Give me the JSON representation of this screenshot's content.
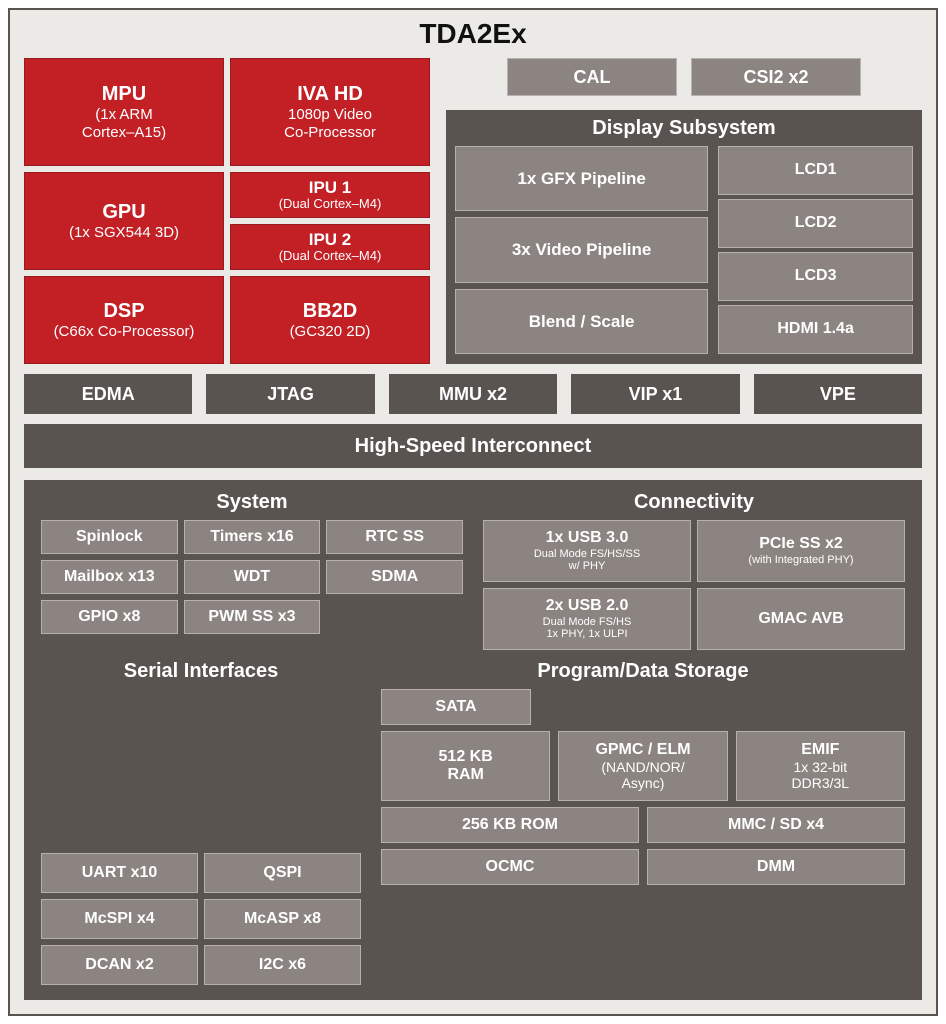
{
  "title": "TDA2Ex",
  "colors": {
    "frame_border": "#5a5451",
    "frame_bg": "#ebeae7",
    "red_bg": "#c32026",
    "red_border": "#9a1b1f",
    "gray_bg": "#8b8481",
    "gray_border": "#b6b1ae",
    "dark_bg": "#5a5451",
    "text_light": "#ffffff",
    "text_dark": "#111111"
  },
  "cores": {
    "mpu": {
      "title": "MPU",
      "sub1": "(1x ARM",
      "sub2": "Cortex–A15)"
    },
    "iva": {
      "title": "IVA HD",
      "sub1": "1080p Video",
      "sub2": "Co-Processor"
    },
    "gpu": {
      "title": "GPU",
      "sub1": "(1x SGX544 3D)"
    },
    "ipu1": {
      "title": "IPU 1",
      "sub1": "(Dual Cortex–M4)"
    },
    "ipu2": {
      "title": "IPU 2",
      "sub1": "(Dual Cortex–M4)"
    },
    "dsp": {
      "title": "DSP",
      "sub1": "(C66x Co-Processor)"
    },
    "bb2d": {
      "title": "BB2D",
      "sub1": "(GC320 2D)"
    }
  },
  "top_gray": {
    "cal": "CAL",
    "csi2": "CSI2 x2"
  },
  "display": {
    "title": "Display Subsystem",
    "left": [
      "1x GFX Pipeline",
      "3x Video Pipeline",
      "Blend / Scale"
    ],
    "right": [
      "LCD1",
      "LCD2",
      "LCD3",
      "HDMI 1.4a"
    ]
  },
  "mid_strip": [
    "EDMA",
    "JTAG",
    "MMU x2",
    "VIP x1",
    "VPE"
  ],
  "interconnect": "High-Speed Interconnect",
  "system": {
    "title": "System",
    "items": [
      "Spinlock",
      "Timers x16",
      "RTC SS",
      "Mailbox x13",
      "WDT",
      "SDMA",
      "GPIO x8",
      "PWM SS x3"
    ]
  },
  "connectivity": {
    "title": "Connectivity",
    "usb3": {
      "t": "1x USB 3.0",
      "s1": "Dual Mode FS/HS/SS",
      "s2": "w/ PHY"
    },
    "pcie": {
      "t": "PCIe SS x2",
      "s1": "(with Integrated PHY)"
    },
    "usb2": {
      "t": "2x USB 2.0",
      "s1": "Dual Mode FS/HS",
      "s2": "1x PHY, 1x ULPI"
    },
    "gmac": {
      "t": "GMAC AVB"
    }
  },
  "serial": {
    "title": "Serial Interfaces",
    "items": [
      "UART x10",
      "QSPI",
      "McSPI x4",
      "McASP x8",
      "DCAN x2",
      "I2C x6"
    ]
  },
  "storage": {
    "title": "Program/Data Storage",
    "sata": "SATA",
    "ram": {
      "t": "512 KB",
      "s": "RAM"
    },
    "gpmc": {
      "t": "GPMC / ELM",
      "s1": "(NAND/NOR/",
      "s2": "Async)"
    },
    "emif": {
      "t": "EMIF",
      "s1": "1x 32-bit",
      "s2": "DDR3/3L"
    },
    "rom": "256 KB ROM",
    "mmc": "MMC / SD x4",
    "ocmc": "OCMC",
    "dmm": "DMM"
  }
}
